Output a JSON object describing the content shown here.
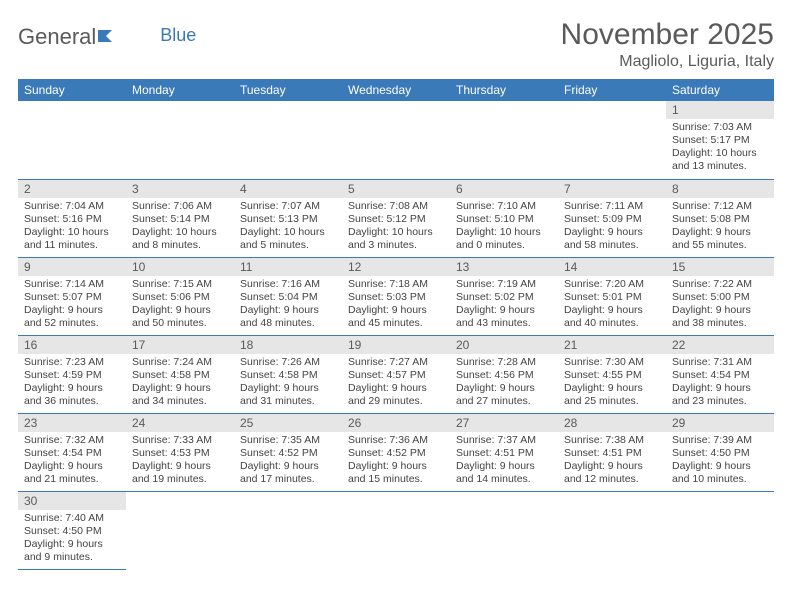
{
  "brand": {
    "part1": "General",
    "part2": "Blue"
  },
  "title": "November 2025",
  "location": "Magliolo, Liguria, Italy",
  "colors": {
    "header_bg": "#3b7ab8",
    "header_fg": "#ffffff",
    "daynum_bg": "#e6e6e6",
    "text": "#5a5a5a"
  },
  "weekdays": [
    "Sunday",
    "Monday",
    "Tuesday",
    "Wednesday",
    "Thursday",
    "Friday",
    "Saturday"
  ],
  "first_weekday_index": 6,
  "days": [
    {
      "n": 1,
      "sunrise": "7:03 AM",
      "sunset": "5:17 PM",
      "daylight": "10 hours and 13 minutes."
    },
    {
      "n": 2,
      "sunrise": "7:04 AM",
      "sunset": "5:16 PM",
      "daylight": "10 hours and 11 minutes."
    },
    {
      "n": 3,
      "sunrise": "7:06 AM",
      "sunset": "5:14 PM",
      "daylight": "10 hours and 8 minutes."
    },
    {
      "n": 4,
      "sunrise": "7:07 AM",
      "sunset": "5:13 PM",
      "daylight": "10 hours and 5 minutes."
    },
    {
      "n": 5,
      "sunrise": "7:08 AM",
      "sunset": "5:12 PM",
      "daylight": "10 hours and 3 minutes."
    },
    {
      "n": 6,
      "sunrise": "7:10 AM",
      "sunset": "5:10 PM",
      "daylight": "10 hours and 0 minutes."
    },
    {
      "n": 7,
      "sunrise": "7:11 AM",
      "sunset": "5:09 PM",
      "daylight": "9 hours and 58 minutes."
    },
    {
      "n": 8,
      "sunrise": "7:12 AM",
      "sunset": "5:08 PM",
      "daylight": "9 hours and 55 minutes."
    },
    {
      "n": 9,
      "sunrise": "7:14 AM",
      "sunset": "5:07 PM",
      "daylight": "9 hours and 52 minutes."
    },
    {
      "n": 10,
      "sunrise": "7:15 AM",
      "sunset": "5:06 PM",
      "daylight": "9 hours and 50 minutes."
    },
    {
      "n": 11,
      "sunrise": "7:16 AM",
      "sunset": "5:04 PM",
      "daylight": "9 hours and 48 minutes."
    },
    {
      "n": 12,
      "sunrise": "7:18 AM",
      "sunset": "5:03 PM",
      "daylight": "9 hours and 45 minutes."
    },
    {
      "n": 13,
      "sunrise": "7:19 AM",
      "sunset": "5:02 PM",
      "daylight": "9 hours and 43 minutes."
    },
    {
      "n": 14,
      "sunrise": "7:20 AM",
      "sunset": "5:01 PM",
      "daylight": "9 hours and 40 minutes."
    },
    {
      "n": 15,
      "sunrise": "7:22 AM",
      "sunset": "5:00 PM",
      "daylight": "9 hours and 38 minutes."
    },
    {
      "n": 16,
      "sunrise": "7:23 AM",
      "sunset": "4:59 PM",
      "daylight": "9 hours and 36 minutes."
    },
    {
      "n": 17,
      "sunrise": "7:24 AM",
      "sunset": "4:58 PM",
      "daylight": "9 hours and 34 minutes."
    },
    {
      "n": 18,
      "sunrise": "7:26 AM",
      "sunset": "4:58 PM",
      "daylight": "9 hours and 31 minutes."
    },
    {
      "n": 19,
      "sunrise": "7:27 AM",
      "sunset": "4:57 PM",
      "daylight": "9 hours and 29 minutes."
    },
    {
      "n": 20,
      "sunrise": "7:28 AM",
      "sunset": "4:56 PM",
      "daylight": "9 hours and 27 minutes."
    },
    {
      "n": 21,
      "sunrise": "7:30 AM",
      "sunset": "4:55 PM",
      "daylight": "9 hours and 25 minutes."
    },
    {
      "n": 22,
      "sunrise": "7:31 AM",
      "sunset": "4:54 PM",
      "daylight": "9 hours and 23 minutes."
    },
    {
      "n": 23,
      "sunrise": "7:32 AM",
      "sunset": "4:54 PM",
      "daylight": "9 hours and 21 minutes."
    },
    {
      "n": 24,
      "sunrise": "7:33 AM",
      "sunset": "4:53 PM",
      "daylight": "9 hours and 19 minutes."
    },
    {
      "n": 25,
      "sunrise": "7:35 AM",
      "sunset": "4:52 PM",
      "daylight": "9 hours and 17 minutes."
    },
    {
      "n": 26,
      "sunrise": "7:36 AM",
      "sunset": "4:52 PM",
      "daylight": "9 hours and 15 minutes."
    },
    {
      "n": 27,
      "sunrise": "7:37 AM",
      "sunset": "4:51 PM",
      "daylight": "9 hours and 14 minutes."
    },
    {
      "n": 28,
      "sunrise": "7:38 AM",
      "sunset": "4:51 PM",
      "daylight": "9 hours and 12 minutes."
    },
    {
      "n": 29,
      "sunrise": "7:39 AM",
      "sunset": "4:50 PM",
      "daylight": "9 hours and 10 minutes."
    },
    {
      "n": 30,
      "sunrise": "7:40 AM",
      "sunset": "4:50 PM",
      "daylight": "9 hours and 9 minutes."
    }
  ],
  "labels": {
    "sunrise": "Sunrise:",
    "sunset": "Sunset:",
    "daylight": "Daylight:"
  }
}
